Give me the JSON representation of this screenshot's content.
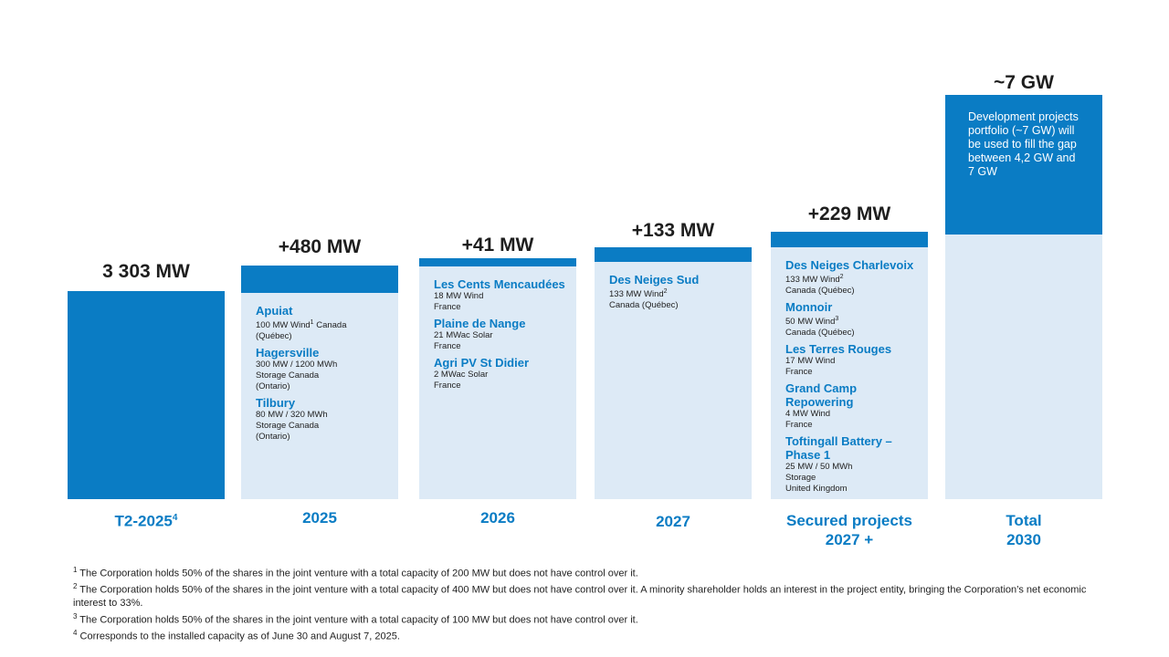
{
  "colors": {
    "accent": "#0a7cc4",
    "light": "#ddeaf6"
  },
  "chart_data": {
    "type": "bar",
    "categories": [
      "T2-2025⁴",
      "2025",
      "2026",
      "2027",
      "Secured projects 2027 +",
      "Total 2030"
    ],
    "value_labels": [
      "3 303 MW",
      "+480 MW",
      "+41 MW",
      "+133 MW",
      "+229 MW",
      "~7 GW"
    ],
    "ylim": [
      0,
      7000
    ],
    "columns": [
      {
        "label": "T2-2025",
        "label_sup": "4",
        "value_label": "3 303 MW",
        "base": 0,
        "value": 3303,
        "projects": []
      },
      {
        "label": "2025",
        "value_label": "+480 MW",
        "base": 3303,
        "value": 480,
        "projects": [
          {
            "name": "Apuiat",
            "lines": [
              [
                "100 MW Wind",
                "1",
                "  Canada"
              ],
              [
                "(Québec)"
              ]
            ]
          },
          {
            "name": "Hagersville",
            "lines": [
              [
                "300 MW / 1200 MWh"
              ],
              [
                "Storage Canada"
              ],
              [
                "(Ontario)"
              ]
            ]
          },
          {
            "name": "Tilbury",
            "lines": [
              [
                "80 MW / 320 MWh"
              ],
              [
                "Storage Canada"
              ],
              [
                "(Ontario)"
              ]
            ]
          }
        ]
      },
      {
        "label": "2026",
        "value_label": "+41 MW",
        "base": 3783,
        "value": 41,
        "projects": [
          {
            "name": "Les Cents Mencaudées",
            "lines": [
              [
                "18 MW Wind"
              ],
              [
                "France"
              ]
            ]
          },
          {
            "name": "Plaine de Nange",
            "lines": [
              [
                "21 MWac Solar"
              ],
              [
                "France"
              ]
            ]
          },
          {
            "name": "Agri PV St Didier",
            "lines": [
              [
                "2 MWac Solar"
              ],
              [
                "France"
              ]
            ]
          }
        ]
      },
      {
        "label": "2027",
        "value_label": "+133 MW",
        "base": 3824,
        "value": 133,
        "projects": [
          {
            "name": "Des Neiges Sud",
            "lines": [
              [
                "133 MW Wind",
                "2"
              ],
              [
                "Canada (Québec)"
              ]
            ]
          }
        ]
      },
      {
        "label": "Secured projects",
        "label_line2": "2027 +",
        "value_label": "+229 MW",
        "base": 3957,
        "value": 229,
        "projects": [
          {
            "name": "Des Neiges Charlevoix",
            "lines": [
              [
                "133 MW Wind",
                "2"
              ],
              [
                "Canada (Québec)"
              ]
            ]
          },
          {
            "name": "Monnoir",
            "lines": [
              [
                "50 MW Wind",
                "3"
              ],
              [
                "Canada (Québec)"
              ]
            ]
          },
          {
            "name": "Les Terres Rouges",
            "lines": [
              [
                "17 MW Wind"
              ],
              [
                "France"
              ]
            ]
          },
          {
            "name": "Grand Camp Repowering",
            "lines": [
              [
                "4 MW Wind"
              ],
              [
                "France"
              ]
            ]
          },
          {
            "name": "Toftingall Battery – Phase 1",
            "lines": [
              [
                "25 MW / 50 MWh"
              ],
              [
                "Storage"
              ],
              [
                "United Kingdom"
              ]
            ]
          }
        ]
      },
      {
        "label": "Total",
        "label_line2": "2030",
        "value_label": "~7 GW",
        "base": 4186,
        "value": 2814,
        "note": "Development projects portfolio (~7 GW) will be used to fill the gap between 4,2 GW and 7 GW",
        "projects": []
      }
    ]
  },
  "footnotes": [
    {
      "num": "1",
      "text": " The Corporation holds 50% of the shares in the joint venture with a total capacity of 200 MW but does not have control over it."
    },
    {
      "num": "2",
      "text": " The Corporation holds 50% of the shares in the joint venture with a total capacity of 400 MW but does not have control over it. A minority shareholder holds an interest in the project entity, bringing the Corporation’s net economic interest to 33%."
    },
    {
      "num": "3",
      "text": " The Corporation holds 50% of the shares in the joint venture with a total capacity of 100 MW but does not have control over it."
    },
    {
      "num": "4",
      "text": " Corresponds to the installed capacity as of June 30 and August 7, 2025."
    }
  ]
}
